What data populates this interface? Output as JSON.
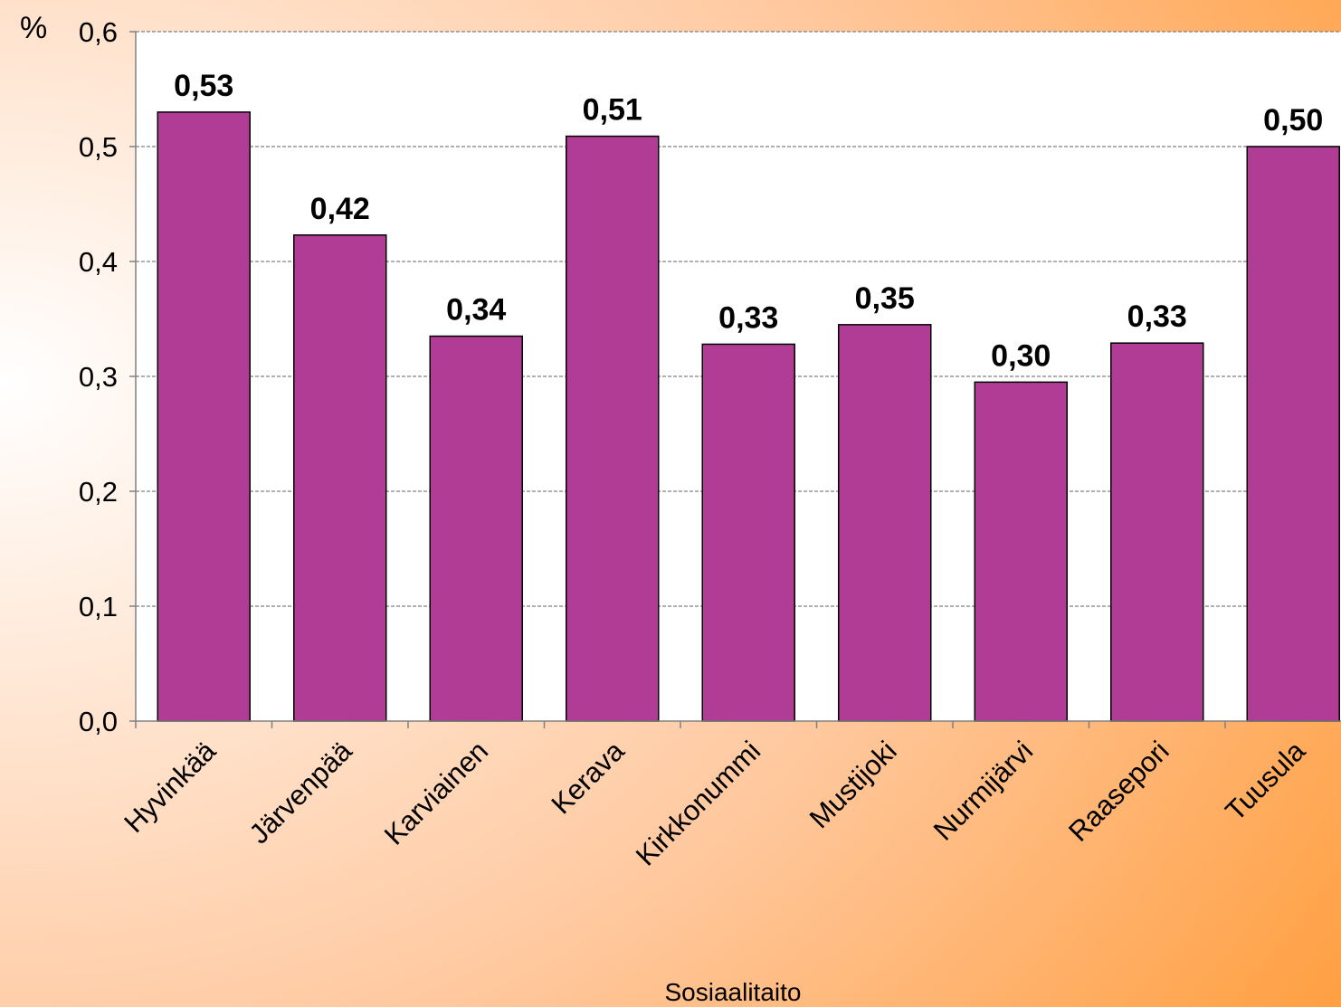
{
  "chart_data": {
    "type": "bar",
    "unit": "%",
    "xlabel": "Sosiaalitaito",
    "ylabel": "",
    "ylim": [
      0,
      0.6
    ],
    "yticks": [
      "0,0",
      "0,1",
      "0,2",
      "0,3",
      "0,4",
      "0,5",
      "0,6"
    ],
    "categories": [
      "Hyvinkää",
      "Järvenpää",
      "Karviainen",
      "Kerava",
      "Kirkkonummi",
      "Mustijoki",
      "Nurmijärvi",
      "Raasepori",
      "Tuusula"
    ],
    "values": [
      0.53,
      0.423,
      0.335,
      0.509,
      0.328,
      0.345,
      0.295,
      0.329,
      0.5
    ],
    "value_labels": [
      "0,53",
      "0,42",
      "0,34",
      "0,51",
      "0,33",
      "0,35",
      "0,30",
      "0,33",
      "0,50"
    ],
    "grid": true,
    "colors": {
      "bar": "#B03C96",
      "bar_border": "#000000",
      "plot_bg": "#FFFFFF",
      "gridline": "#808080",
      "bg_light": "#FFFFFF",
      "bg_dark": "#FF9933"
    }
  }
}
